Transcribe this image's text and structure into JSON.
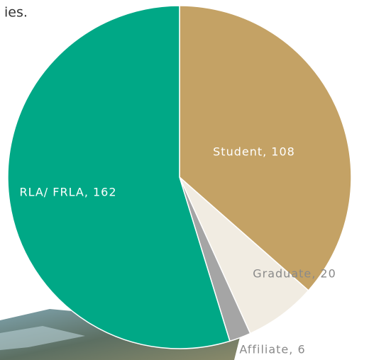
{
  "fragment_text": "ies.",
  "chart_data": {
    "type": "pie",
    "values": [
      108,
      20,
      6,
      162
    ],
    "value_labels": [
      "Student, 108",
      "Graduate, 20",
      "Affiliate, 6",
      "RLA/ FRLA, 162"
    ],
    "colors": [
      "#c4a265",
      "#f1ece2",
      "#a5a5a5",
      "#00a886"
    ]
  }
}
